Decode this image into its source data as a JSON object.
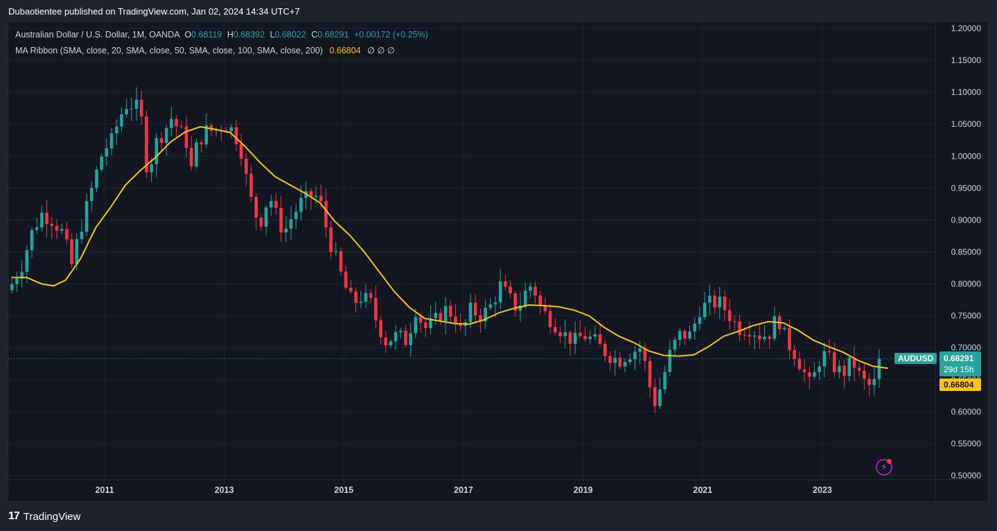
{
  "publish": {
    "text": "Dubaotientee published on TradingView.com, Jan 02, 2024 14:34 UTC+7"
  },
  "legend": {
    "instrument": "Australian Dollar / U.S. Dollar, 1M, OANDA",
    "o_key": "O",
    "o_val": "0.68119",
    "h_key": "H",
    "h_val": "0.68392",
    "l_key": "L",
    "l_val": "0.68022",
    "c_key": "C",
    "c_val": "0.68291",
    "change": "+0.00172 (+0.25%)",
    "indicator": "MA Ribbon (SMA, close, 20, SMA, close, 50, SMA, close, 100, SMA, close, 200)",
    "ma_value": "0.66804",
    "na_values": "∅  ∅  ∅"
  },
  "price_tags": {
    "symbol": "AUDUSD",
    "last_price": "0.68291",
    "countdown": "29d 15h",
    "ma_price": "0.66804"
  },
  "footer": {
    "brand": "TradingView"
  },
  "colors": {
    "up": "#26a69a",
    "down": "#f23645",
    "ma": "#f5c518",
    "background": "#131722",
    "grid": "#232632",
    "axis_text": "#d1d4dc"
  },
  "chart_data": {
    "type": "candlestick",
    "symbol": "AUDUSD",
    "timeframe": "1M",
    "ylim": [
      0.5,
      1.2
    ],
    "y_ticks": [
      "1.20000",
      "1.15000",
      "1.10000",
      "1.05000",
      "1.00000",
      "0.95000",
      "0.90000",
      "0.85000",
      "0.80000",
      "0.75000",
      "0.70000",
      "0.65000",
      "0.60000",
      "0.55000",
      "0.50000"
    ],
    "x_ticks": [
      "2011",
      "2013",
      "2015",
      "2017",
      "2019",
      "2021",
      "2023"
    ],
    "last_price": 0.68291,
    "anchors": [
      [
        2009.45,
        0.8
      ],
      [
        2009.62,
        0.83
      ],
      [
        2009.78,
        0.88
      ],
      [
        2009.95,
        0.91
      ],
      [
        2010.12,
        0.9
      ],
      [
        2010.3,
        0.88
      ],
      [
        2010.45,
        0.83
      ],
      [
        2010.55,
        0.87
      ],
      [
        2010.7,
        0.92
      ],
      [
        2010.85,
        0.97
      ],
      [
        2010.98,
        1.01
      ],
      [
        2011.1,
        1.02
      ],
      [
        2011.25,
        1.06
      ],
      [
        2011.35,
        1.08
      ],
      [
        2011.5,
        1.08
      ],
      [
        2011.6,
        1.07
      ],
      [
        2011.72,
        0.97
      ],
      [
        2011.85,
        1.02
      ],
      [
        2012.0,
        1.04
      ],
      [
        2012.12,
        1.06
      ],
      [
        2012.25,
        1.04
      ],
      [
        2012.35,
        1.03
      ],
      [
        2012.45,
        0.98
      ],
      [
        2012.55,
        1.02
      ],
      [
        2012.7,
        1.04
      ],
      [
        2012.85,
        1.04
      ],
      [
        2013.0,
        1.05
      ],
      [
        2013.15,
        1.04
      ],
      [
        2013.28,
        1.01
      ],
      [
        2013.38,
        0.96
      ],
      [
        2013.5,
        0.91
      ],
      [
        2013.62,
        0.9
      ],
      [
        2013.75,
        0.94
      ],
      [
        2013.9,
        0.9
      ],
      [
        2014.0,
        0.88
      ],
      [
        2014.1,
        0.9
      ],
      [
        2014.3,
        0.93
      ],
      [
        2014.5,
        0.94
      ],
      [
        2014.6,
        0.93
      ],
      [
        2014.75,
        0.87
      ],
      [
        2014.9,
        0.83
      ],
      [
        2015.0,
        0.8
      ],
      [
        2015.15,
        0.77
      ],
      [
        2015.3,
        0.78
      ],
      [
        2015.45,
        0.77
      ],
      [
        2015.55,
        0.74
      ],
      [
        2015.7,
        0.71
      ],
      [
        2015.9,
        0.72
      ],
      [
        2016.05,
        0.71
      ],
      [
        2016.2,
        0.76
      ],
      [
        2016.35,
        0.73
      ],
      [
        2016.5,
        0.74
      ],
      [
        2016.7,
        0.76
      ],
      [
        2016.85,
        0.75
      ],
      [
        2016.98,
        0.72
      ],
      [
        2017.1,
        0.76
      ],
      [
        2017.3,
        0.75
      ],
      [
        2017.5,
        0.77
      ],
      [
        2017.6,
        0.8
      ],
      [
        2017.75,
        0.78
      ],
      [
        2017.9,
        0.76
      ],
      [
        2018.05,
        0.79
      ],
      [
        2018.15,
        0.8
      ],
      [
        2018.3,
        0.76
      ],
      [
        2018.5,
        0.74
      ],
      [
        2018.7,
        0.72
      ],
      [
        2018.85,
        0.71
      ],
      [
        2019.0,
        0.72
      ],
      [
        2019.2,
        0.71
      ],
      [
        2019.4,
        0.69
      ],
      [
        2019.6,
        0.68
      ],
      [
        2019.75,
        0.69
      ],
      [
        2019.95,
        0.7
      ],
      [
        2020.05,
        0.67
      ],
      [
        2020.18,
        0.61
      ],
      [
        2020.3,
        0.64
      ],
      [
        2020.45,
        0.69
      ],
      [
        2020.6,
        0.72
      ],
      [
        2020.8,
        0.72
      ],
      [
        2020.95,
        0.76
      ],
      [
        2021.1,
        0.77
      ],
      [
        2021.3,
        0.77
      ],
      [
        2021.45,
        0.75
      ],
      [
        2021.6,
        0.73
      ],
      [
        2021.8,
        0.73
      ],
      [
        2021.95,
        0.72
      ],
      [
        2022.1,
        0.72
      ],
      [
        2022.25,
        0.75
      ],
      [
        2022.4,
        0.71
      ],
      [
        2022.55,
        0.69
      ],
      [
        2022.7,
        0.66
      ],
      [
        2022.8,
        0.64
      ],
      [
        2022.95,
        0.68
      ],
      [
        2023.05,
        0.69
      ],
      [
        2023.2,
        0.67
      ],
      [
        2023.35,
        0.66
      ],
      [
        2023.5,
        0.68
      ],
      [
        2023.6,
        0.66
      ],
      [
        2023.75,
        0.64
      ],
      [
        2023.85,
        0.64
      ],
      [
        2023.92,
        0.66
      ],
      [
        2024.0,
        0.68291
      ]
    ],
    "ma20_label": "0.66804",
    "ma20": [
      [
        2009.45,
        0.81
      ],
      [
        2009.7,
        0.81
      ],
      [
        2009.95,
        0.8
      ],
      [
        2010.15,
        0.797
      ],
      [
        2010.35,
        0.806
      ],
      [
        2010.6,
        0.84
      ],
      [
        2010.85,
        0.888
      ],
      [
        2011.1,
        0.92
      ],
      [
        2011.35,
        0.955
      ],
      [
        2011.6,
        0.978
      ],
      [
        2011.85,
        0.998
      ],
      [
        2012.1,
        1.022
      ],
      [
        2012.35,
        1.038
      ],
      [
        2012.6,
        1.046
      ],
      [
        2012.85,
        1.042
      ],
      [
        2013.1,
        1.037
      ],
      [
        2013.35,
        1.015
      ],
      [
        2013.6,
        0.99
      ],
      [
        2013.85,
        0.968
      ],
      [
        2014.1,
        0.955
      ],
      [
        2014.35,
        0.942
      ],
      [
        2014.6,
        0.927
      ],
      [
        2014.85,
        0.898
      ],
      [
        2015.1,
        0.876
      ],
      [
        2015.35,
        0.849
      ],
      [
        2015.6,
        0.818
      ],
      [
        2015.85,
        0.787
      ],
      [
        2016.1,
        0.763
      ],
      [
        2016.35,
        0.746
      ],
      [
        2016.6,
        0.742
      ],
      [
        2016.85,
        0.738
      ],
      [
        2017.1,
        0.737
      ],
      [
        2017.35,
        0.744
      ],
      [
        2017.6,
        0.755
      ],
      [
        2017.85,
        0.762
      ],
      [
        2018.1,
        0.767
      ],
      [
        2018.35,
        0.766
      ],
      [
        2018.6,
        0.764
      ],
      [
        2018.85,
        0.759
      ],
      [
        2019.1,
        0.75
      ],
      [
        2019.35,
        0.732
      ],
      [
        2019.6,
        0.718
      ],
      [
        2019.85,
        0.708
      ],
      [
        2020.1,
        0.695
      ],
      [
        2020.35,
        0.688
      ],
      [
        2020.6,
        0.687
      ],
      [
        2020.85,
        0.689
      ],
      [
        2021.1,
        0.702
      ],
      [
        2021.35,
        0.718
      ],
      [
        2021.6,
        0.726
      ],
      [
        2021.85,
        0.735
      ],
      [
        2022.1,
        0.741
      ],
      [
        2022.35,
        0.739
      ],
      [
        2022.6,
        0.727
      ],
      [
        2022.85,
        0.712
      ],
      [
        2023.1,
        0.702
      ],
      [
        2023.35,
        0.693
      ],
      [
        2023.6,
        0.68
      ],
      [
        2023.85,
        0.671
      ],
      [
        2024.1,
        0.668
      ]
    ]
  }
}
